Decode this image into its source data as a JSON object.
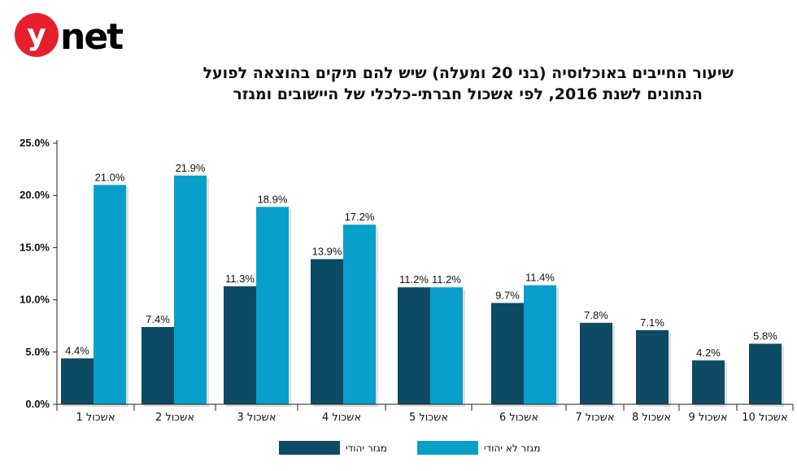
{
  "brand": {
    "logo_text": "ynet",
    "logo_color": "#e5202c"
  },
  "chart_data": {
    "type": "bar",
    "title": "שיעור החייבים באוכלוסיה (בני 20 ומעלה) שיש להם תיקים בהוצאה לפועל",
    "subtitle": "הנתונים לשנת 2016, לפי אשכול חברתי-כלכלי של היישובים ומגזר",
    "categories": [
      "אשכול 1",
      "אשכול 2",
      "אשכול 3",
      "אשכול 4",
      "אשכול 5",
      "אשכול 6",
      "אשכול 7",
      "אשכול 8",
      "אשכול 9",
      "אשכול 10"
    ],
    "series": [
      {
        "name": "מגזר יהודי",
        "color": "#0d4a63",
        "values": [
          4.4,
          7.4,
          11.3,
          13.9,
          11.2,
          9.7,
          7.8,
          7.1,
          4.2,
          5.8
        ],
        "labels": [
          "4.4%",
          "7.4%",
          "11.3%",
          "13.9%",
          "11.2%",
          "9.7%",
          "7.8%",
          "7.1%",
          "4.2%",
          "5.8%"
        ]
      },
      {
        "name": "מגזר לא יהודי",
        "color": "#089fcb",
        "values": [
          21.0,
          21.9,
          18.9,
          17.2,
          11.2,
          11.4,
          null,
          null,
          null,
          null
        ],
        "labels": [
          "21.0%",
          "21.9%",
          "18.9%",
          "17.2%",
          "11.2%",
          "11.4%",
          null,
          null,
          null,
          null
        ]
      }
    ],
    "ylim": [
      0,
      25
    ],
    "yticks": [
      "0.0%",
      "5.0%",
      "10.0%",
      "15.0%",
      "20.0%",
      "25.0%"
    ],
    "ytick_values": [
      0,
      5,
      10,
      15,
      20,
      25
    ],
    "grid": false,
    "legend_position": "bottom"
  }
}
